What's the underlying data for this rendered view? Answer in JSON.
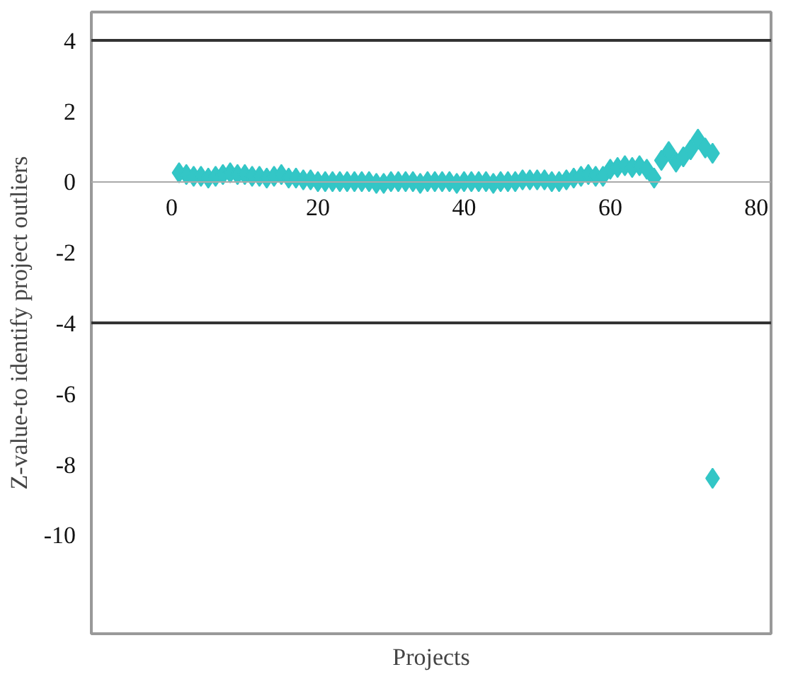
{
  "chart_data": {
    "type": "scatter",
    "xlabel": "Projects",
    "ylabel": "Z-value-to identify project outliers",
    "xlim": [
      -11,
      82
    ],
    "xticks": [
      0,
      20,
      40,
      60,
      80
    ],
    "ylim": [
      -12.8,
      4.8
    ],
    "yticks": [
      4,
      2,
      0,
      -2,
      -4,
      -6,
      -8,
      -10
    ],
    "marker": "diamond",
    "grid": false,
    "ref_lines": [
      {
        "axis": "y",
        "value": 4,
        "color": "#333333"
      },
      {
        "axis": "y",
        "value": -4,
        "color": "#333333"
      }
    ],
    "series": [
      {
        "color": "#33c6c6",
        "x": [
          1,
          2,
          3,
          4,
          5,
          6,
          7,
          8,
          9,
          10,
          11,
          12,
          13,
          14,
          15,
          16,
          17,
          18,
          19,
          20,
          21,
          22,
          23,
          24,
          25,
          26,
          27,
          28,
          29,
          30,
          31,
          32,
          33,
          34,
          35,
          36,
          37,
          38,
          39,
          40,
          41,
          42,
          43,
          44,
          45,
          46,
          47,
          48,
          49,
          50,
          51,
          52,
          53,
          54,
          55,
          56,
          57,
          58,
          59,
          60,
          61,
          62,
          63,
          64,
          65,
          66,
          67,
          68,
          69,
          70,
          71,
          72,
          73,
          74,
          74
        ],
        "values": [
          0.25,
          0.2,
          0.15,
          0.15,
          0.1,
          0.15,
          0.2,
          0.25,
          0.2,
          0.2,
          0.15,
          0.15,
          0.1,
          0.15,
          0.2,
          0.1,
          0.1,
          0.05,
          0.05,
          0,
          0,
          0,
          0,
          0,
          0,
          0,
          0,
          -0.05,
          -0.05,
          0,
          0,
          0,
          0,
          -0.05,
          0,
          0,
          0,
          0,
          -0.05,
          0,
          0,
          0,
          0,
          -0.05,
          0,
          0,
          0,
          0.05,
          0.05,
          0.05,
          0.05,
          0,
          0,
          0.05,
          0.1,
          0.15,
          0.2,
          0.15,
          0.15,
          0.35,
          0.4,
          0.45,
          0.4,
          0.45,
          0.35,
          0.1,
          0.6,
          0.85,
          0.55,
          0.7,
          0.9,
          1.2,
          0.95,
          0.8,
          -8.4
        ]
      }
    ]
  }
}
